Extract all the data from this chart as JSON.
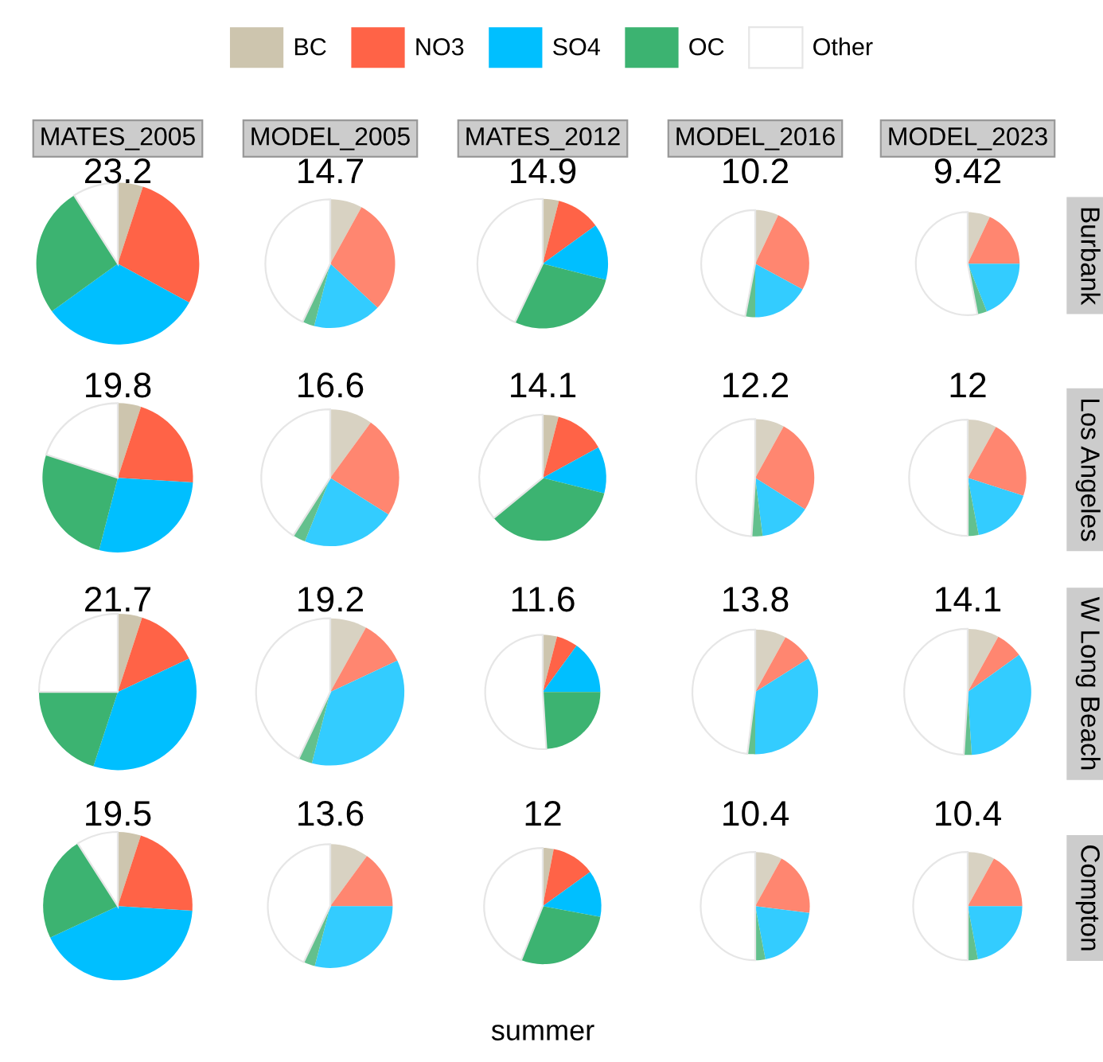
{
  "chart_data": [
    {
      "type": "pie",
      "title": "MATES_2005",
      "legend": "top",
      "categories": [
        "BC",
        "NO3",
        "SO4",
        "OC",
        "Other"
      ],
      "colors": [
        "#cdc5ae",
        "#ff6347",
        "#00bfff",
        "#3cb371",
        "#ffffff"
      ],
      "values": [
        5,
        28,
        32,
        26,
        9
      ],
      "annotations": [
        "23.2"
      ]
    },
    {
      "type": "pie",
      "title": "MODEL_2005",
      "categories": [
        null,
        null,
        null,
        null,
        null
      ],
      "colors": [
        "#d8d2c2",
        "#ff8670",
        "#33ccff",
        "#63c08d",
        "#ffffff"
      ],
      "values": [
        8,
        29,
        17,
        3,
        43
      ],
      "annotations": [
        "14.7"
      ]
    },
    {
      "type": "pie",
      "title": "MATES_2012",
      "categories": [
        null,
        null,
        null,
        null,
        null
      ],
      "colors": [
        "#cdc5ae",
        "#ff6347",
        "#00bfff",
        "#3cb371",
        "#ffffff"
      ],
      "values": [
        4,
        11,
        14,
        28,
        43
      ],
      "annotations": [
        "14.9"
      ]
    },
    {
      "type": "pie",
      "title": "MODEL_2016",
      "categories": [
        null,
        null,
        null,
        null,
        null
      ],
      "colors": [
        "#d8d2c2",
        "#ff8670",
        "#33ccff",
        "#63c08d",
        "#ffffff"
      ],
      "values": [
        7,
        26,
        17,
        3,
        47
      ],
      "annotations": [
        "10.2"
      ]
    },
    {
      "type": "pie",
      "title": "MODEL_2023",
      "ylabel": "Burbank",
      "categories": [
        null,
        null,
        null,
        null,
        null
      ],
      "colors": [
        "#d8d2c2",
        "#ff8670",
        "#33ccff",
        "#63c08d",
        "#ffffff"
      ],
      "values": [
        7,
        18,
        19,
        3,
        53
      ],
      "annotations": [
        "9.42"
      ]
    },
    {
      "type": "pie",
      "categories": [
        null,
        null,
        null,
        null,
        null
      ],
      "colors": [
        "#cdc5ae",
        "#ff6347",
        "#00bfff",
        "#3cb371",
        "#ffffff"
      ],
      "values": [
        5,
        21,
        28,
        26,
        20
      ],
      "annotations": [
        "19.8"
      ]
    },
    {
      "type": "pie",
      "categories": [
        null,
        null,
        null,
        null,
        null
      ],
      "colors": [
        "#d8d2c2",
        "#ff8670",
        "#33ccff",
        "#63c08d",
        "#ffffff"
      ],
      "values": [
        10,
        24,
        22,
        3,
        41
      ],
      "annotations": [
        "16.6"
      ]
    },
    {
      "type": "pie",
      "categories": [
        null,
        null,
        null,
        null,
        null
      ],
      "colors": [
        "#cdc5ae",
        "#ff6347",
        "#00bfff",
        "#3cb371",
        "#ffffff"
      ],
      "values": [
        4,
        13,
        12,
        35,
        36
      ],
      "annotations": [
        "14.1"
      ]
    },
    {
      "type": "pie",
      "categories": [
        null,
        null,
        null,
        null,
        null
      ],
      "colors": [
        "#d8d2c2",
        "#ff8670",
        "#33ccff",
        "#63c08d",
        "#ffffff"
      ],
      "values": [
        8,
        26,
        14,
        3,
        49
      ],
      "annotations": [
        "12.2"
      ]
    },
    {
      "type": "pie",
      "ylabel": "Los Angeles",
      "categories": [
        null,
        null,
        null,
        null,
        null
      ],
      "colors": [
        "#d8d2c2",
        "#ff8670",
        "#33ccff",
        "#63c08d",
        "#ffffff"
      ],
      "values": [
        8,
        22,
        17,
        3,
        50
      ],
      "annotations": [
        "12"
      ]
    },
    {
      "type": "pie",
      "categories": [
        null,
        null,
        null,
        null,
        null
      ],
      "colors": [
        "#cdc5ae",
        "#ff6347",
        "#00bfff",
        "#3cb371",
        "#ffffff"
      ],
      "values": [
        5,
        13,
        37,
        20,
        25
      ],
      "annotations": [
        "21.7"
      ]
    },
    {
      "type": "pie",
      "categories": [
        null,
        null,
        null,
        null,
        null
      ],
      "colors": [
        "#d8d2c2",
        "#ff8670",
        "#33ccff",
        "#63c08d",
        "#ffffff"
      ],
      "values": [
        8,
        10,
        36,
        3,
        43
      ],
      "annotations": [
        "19.2"
      ]
    },
    {
      "type": "pie",
      "categories": [
        null,
        null,
        null,
        null,
        null
      ],
      "colors": [
        "#cdc5ae",
        "#ff6347",
        "#00bfff",
        "#3cb371",
        "#ffffff"
      ],
      "values": [
        4,
        6,
        15,
        24,
        51
      ],
      "annotations": [
        "11.6"
      ]
    },
    {
      "type": "pie",
      "categories": [
        null,
        null,
        null,
        null,
        null
      ],
      "colors": [
        "#d8d2c2",
        "#ff8670",
        "#33ccff",
        "#63c08d",
        "#ffffff"
      ],
      "values": [
        8,
        8,
        34,
        2,
        48
      ],
      "annotations": [
        "13.8"
      ]
    },
    {
      "type": "pie",
      "ylabel": "W Long Beach",
      "categories": [
        null,
        null,
        null,
        null,
        null
      ],
      "colors": [
        "#d8d2c2",
        "#ff8670",
        "#33ccff",
        "#63c08d",
        "#ffffff"
      ],
      "values": [
        8,
        7,
        34,
        2,
        49
      ],
      "annotations": [
        "14.1"
      ]
    },
    {
      "type": "pie",
      "categories": [
        null,
        null,
        null,
        null,
        null
      ],
      "colors": [
        "#cdc5ae",
        "#ff6347",
        "#00bfff",
        "#3cb371",
        "#ffffff"
      ],
      "values": [
        5,
        21,
        42,
        23,
        9
      ],
      "annotations": [
        "19.5"
      ]
    },
    {
      "type": "pie",
      "categories": [
        null,
        null,
        null,
        null,
        null
      ],
      "colors": [
        "#d8d2c2",
        "#ff8670",
        "#33ccff",
        "#63c08d",
        "#ffffff"
      ],
      "values": [
        10,
        15,
        29,
        3,
        43
      ],
      "annotations": [
        "13.6"
      ]
    },
    {
      "type": "pie",
      "xlabel": "summer",
      "categories": [
        null,
        null,
        null,
        null,
        null
      ],
      "colors": [
        "#cdc5ae",
        "#ff6347",
        "#00bfff",
        "#3cb371",
        "#ffffff"
      ],
      "values": [
        3,
        12,
        13,
        28,
        44
      ],
      "annotations": [
        "12"
      ]
    },
    {
      "type": "pie",
      "categories": [
        null,
        null,
        null,
        null,
        null
      ],
      "colors": [
        "#d8d2c2",
        "#ff8670",
        "#33ccff",
        "#63c08d",
        "#ffffff"
      ],
      "values": [
        8,
        19,
        20,
        3,
        50
      ],
      "annotations": [
        "10.4"
      ]
    },
    {
      "type": "pie",
      "ylabel": "Compton",
      "categories": [
        null,
        null,
        null,
        null,
        null
      ],
      "colors": [
        "#d8d2c2",
        "#ff8670",
        "#33ccff",
        "#63c08d",
        "#ffffff"
      ],
      "values": [
        8,
        17,
        22,
        3,
        50
      ],
      "annotations": [
        "10.4"
      ]
    }
  ]
}
